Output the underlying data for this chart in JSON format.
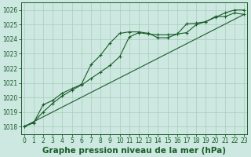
{
  "title": "Graphe pression niveau de la mer (hPa)",
  "background_color": "#cce8e0",
  "grid_color": "#aaccbb",
  "line_color": "#1a5c2a",
  "x_values": [
    0,
    1,
    2,
    3,
    4,
    5,
    6,
    7,
    8,
    9,
    10,
    11,
    12,
    13,
    14,
    15,
    16,
    17,
    18,
    19,
    20,
    21,
    22,
    23
  ],
  "series1": [
    1018.0,
    1018.3,
    1019.0,
    1019.6,
    1020.1,
    1020.5,
    1020.85,
    1021.3,
    1021.75,
    1022.2,
    1022.8,
    1024.15,
    1024.45,
    1024.35,
    1024.3,
    1024.3,
    1024.35,
    1024.45,
    1025.0,
    1025.2,
    1025.5,
    1025.8,
    1026.0,
    1026.0
  ],
  "series2": [
    1018.0,
    1018.25,
    1019.5,
    1019.8,
    1020.3,
    1020.6,
    1020.9,
    1022.25,
    1022.9,
    1023.75,
    1024.4,
    1024.5,
    1024.5,
    1024.4,
    1024.1,
    1024.1,
    1024.35,
    1025.05,
    1025.1,
    1025.2,
    1025.55,
    1025.55,
    1025.8,
    1025.7
  ],
  "trend_x": [
    0,
    23
  ],
  "trend_y": [
    1018.0,
    1025.7
  ],
  "ylim": [
    1017.5,
    1026.5
  ],
  "yticks": [
    1018,
    1019,
    1020,
    1021,
    1022,
    1023,
    1024,
    1025,
    1026
  ],
  "xlim": [
    -0.3,
    23.3
  ],
  "xticks": [
    0,
    1,
    2,
    3,
    4,
    5,
    6,
    7,
    8,
    9,
    10,
    11,
    12,
    13,
    14,
    15,
    16,
    17,
    18,
    19,
    20,
    21,
    22,
    23
  ],
  "tick_fontsize": 5.5,
  "title_fontsize": 7.5,
  "title_color": "#1a5c2a",
  "figsize": [
    3.2,
    2.0
  ],
  "dpi": 100
}
